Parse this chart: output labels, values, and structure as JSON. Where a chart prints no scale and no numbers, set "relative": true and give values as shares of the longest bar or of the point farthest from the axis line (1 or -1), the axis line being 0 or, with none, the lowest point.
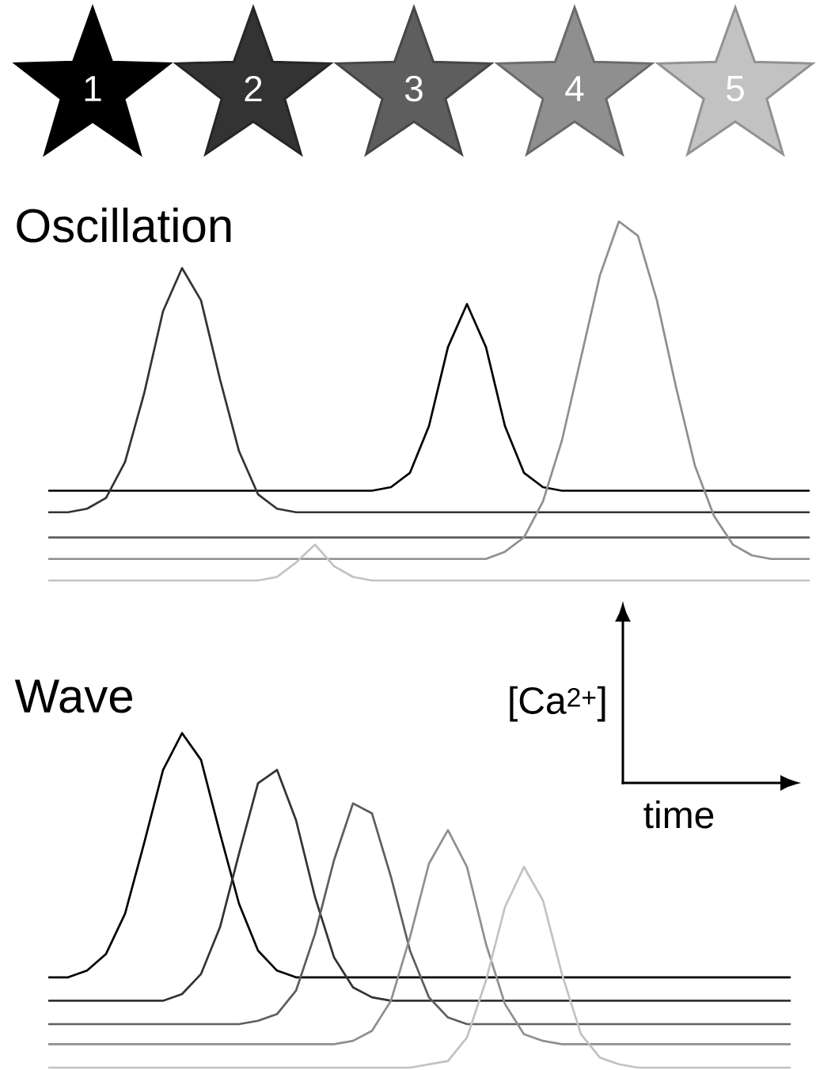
{
  "chart_data": [
    {
      "type": "line",
      "title": "Oscillation",
      "relative": true,
      "annotations": [
        "1",
        "2",
        "3",
        "4",
        "5"
      ],
      "categories": [
        null,
        null,
        null,
        null,
        null,
        null,
        null,
        null,
        null,
        null,
        null,
        null,
        null,
        null,
        null,
        null,
        null,
        null,
        null,
        null,
        null,
        null,
        null,
        null,
        null,
        null,
        null,
        null,
        null,
        null,
        null,
        null,
        null,
        null,
        null,
        null,
        null,
        null,
        null,
        null,
        null
      ],
      "series": [
        {
          "color": "#000000",
          "values": [
            0.25,
            0.25,
            0.25,
            0.25,
            0.25,
            0.25,
            0.25,
            0.25,
            0.25,
            0.25,
            0.25,
            0.25,
            0.25,
            0.25,
            0.25,
            0.25,
            0.25,
            0.25,
            0.26,
            0.3,
            0.43,
            0.65,
            0.77,
            0.65,
            0.43,
            0.3,
            0.26,
            0.25,
            0.25,
            0.25,
            0.25,
            0.25,
            0.25,
            0.25,
            0.25,
            0.25,
            0.25,
            0.25,
            0.25,
            0.25,
            0.25
          ]
        },
        {
          "color": "#333333",
          "values": [
            0.19,
            0.19,
            0.2,
            0.23,
            0.33,
            0.52,
            0.75,
            0.87,
            0.78,
            0.56,
            0.36,
            0.24,
            0.2,
            0.19,
            0.19,
            0.19,
            0.19,
            0.19,
            0.19,
            0.19,
            0.19,
            0.19,
            0.19,
            0.19,
            0.19,
            0.19,
            0.19,
            0.19,
            0.19,
            0.19,
            0.19,
            0.19,
            0.19,
            0.19,
            0.19,
            0.19,
            0.19,
            0.19,
            0.19,
            0.19,
            0.19
          ]
        },
        {
          "color": "#5e5e5e",
          "values": [
            0.12,
            0.12,
            0.12,
            0.12,
            0.12,
            0.12,
            0.12,
            0.12,
            0.12,
            0.12,
            0.12,
            0.12,
            0.12,
            0.12,
            0.12,
            0.12,
            0.12,
            0.12,
            0.12,
            0.12,
            0.12,
            0.12,
            0.12,
            0.12,
            0.12,
            0.12,
            0.12,
            0.12,
            0.12,
            0.12,
            0.12,
            0.12,
            0.12,
            0.12,
            0.12,
            0.12,
            0.12,
            0.12,
            0.12,
            0.12,
            0.12
          ]
        },
        {
          "color": "#8f8f8f",
          "values": [
            0.06,
            0.06,
            0.06,
            0.06,
            0.06,
            0.06,
            0.06,
            0.06,
            0.06,
            0.06,
            0.06,
            0.06,
            0.06,
            0.06,
            0.06,
            0.06,
            0.06,
            0.06,
            0.06,
            0.06,
            0.06,
            0.06,
            0.06,
            0.06,
            0.08,
            0.12,
            0.22,
            0.39,
            0.62,
            0.85,
            1,
            0.96,
            0.78,
            0.54,
            0.32,
            0.18,
            0.1,
            0.07,
            0.06,
            0.06,
            0.06
          ]
        },
        {
          "color": "#c2c2c2",
          "values": [
            0,
            0,
            0,
            0,
            0,
            0,
            0,
            0,
            0,
            0,
            0,
            0,
            0.01,
            0.05,
            0.1,
            0.04,
            0.01,
            0,
            0,
            0,
            0,
            0,
            0,
            0,
            0,
            0,
            0,
            0,
            0,
            0,
            0,
            0,
            0,
            0,
            0,
            0,
            0,
            0,
            0,
            0,
            0
          ]
        }
      ]
    },
    {
      "type": "line",
      "title": "Wave",
      "xlabel": "time",
      "ylabel": "[Ca$^{2+}$]",
      "relative": true,
      "categories": [
        null,
        null,
        null,
        null,
        null,
        null,
        null,
        null,
        null,
        null,
        null,
        null,
        null,
        null,
        null,
        null,
        null,
        null,
        null,
        null,
        null,
        null,
        null,
        null,
        null,
        null,
        null,
        null,
        null,
        null,
        null,
        null,
        null,
        null,
        null,
        null,
        null,
        null,
        null,
        null
      ],
      "series": [
        {
          "color": "#000000",
          "values": [
            0.27,
            0.27,
            0.29,
            0.34,
            0.46,
            0.67,
            0.89,
            1,
            0.92,
            0.7,
            0.49,
            0.35,
            0.29,
            0.27,
            0.27,
            0.27,
            0.27,
            0.27,
            0.27,
            0.27,
            0.27,
            0.27,
            0.27,
            0.27,
            0.27,
            0.27,
            0.27,
            0.27,
            0.27,
            0.27,
            0.27,
            0.27,
            0.27,
            0.27,
            0.27,
            0.27,
            0.27,
            0.27,
            0.27,
            0.27
          ]
        },
        {
          "color": "#333333",
          "values": [
            0.2,
            0.2,
            0.2,
            0.2,
            0.2,
            0.2,
            0.2,
            0.22,
            0.28,
            0.42,
            0.64,
            0.85,
            0.89,
            0.74,
            0.51,
            0.33,
            0.24,
            0.21,
            0.2,
            0.2,
            0.2,
            0.2,
            0.2,
            0.2,
            0.2,
            0.2,
            0.2,
            0.2,
            0.2,
            0.2,
            0.2,
            0.2,
            0.2,
            0.2,
            0.2,
            0.2,
            0.2,
            0.2,
            0.2,
            0.2
          ]
        },
        {
          "color": "#5e5e5e",
          "values": [
            0.13,
            0.13,
            0.13,
            0.13,
            0.13,
            0.13,
            0.13,
            0.13,
            0.13,
            0.13,
            0.13,
            0.14,
            0.16,
            0.23,
            0.4,
            0.62,
            0.79,
            0.76,
            0.57,
            0.35,
            0.21,
            0.15,
            0.13,
            0.13,
            0.13,
            0.13,
            0.13,
            0.13,
            0.13,
            0.13,
            0.13,
            0.13,
            0.13,
            0.13,
            0.13,
            0.13,
            0.13,
            0.13,
            0.13,
            0.13
          ]
        },
        {
          "color": "#8f8f8f",
          "values": [
            0.07,
            0.07,
            0.07,
            0.07,
            0.07,
            0.07,
            0.07,
            0.07,
            0.07,
            0.07,
            0.07,
            0.07,
            0.07,
            0.07,
            0.07,
            0.07,
            0.08,
            0.11,
            0.2,
            0.39,
            0.61,
            0.71,
            0.6,
            0.37,
            0.19,
            0.1,
            0.08,
            0.07,
            0.07,
            0.07,
            0.07,
            0.07,
            0.07,
            0.07,
            0.07,
            0.07,
            0.07,
            0.07,
            0.07,
            0.07
          ]
        },
        {
          "color": "#c2c2c2",
          "values": [
            0,
            0,
            0,
            0,
            0,
            0,
            0,
            0,
            0,
            0,
            0,
            0,
            0,
            0,
            0,
            0,
            0,
            0,
            0,
            0,
            0.01,
            0.02,
            0.09,
            0.26,
            0.48,
            0.6,
            0.5,
            0.28,
            0.1,
            0.03,
            0.01,
            0,
            0,
            0,
            0,
            0,
            0,
            0,
            0,
            0
          ]
        }
      ]
    }
  ]
}
